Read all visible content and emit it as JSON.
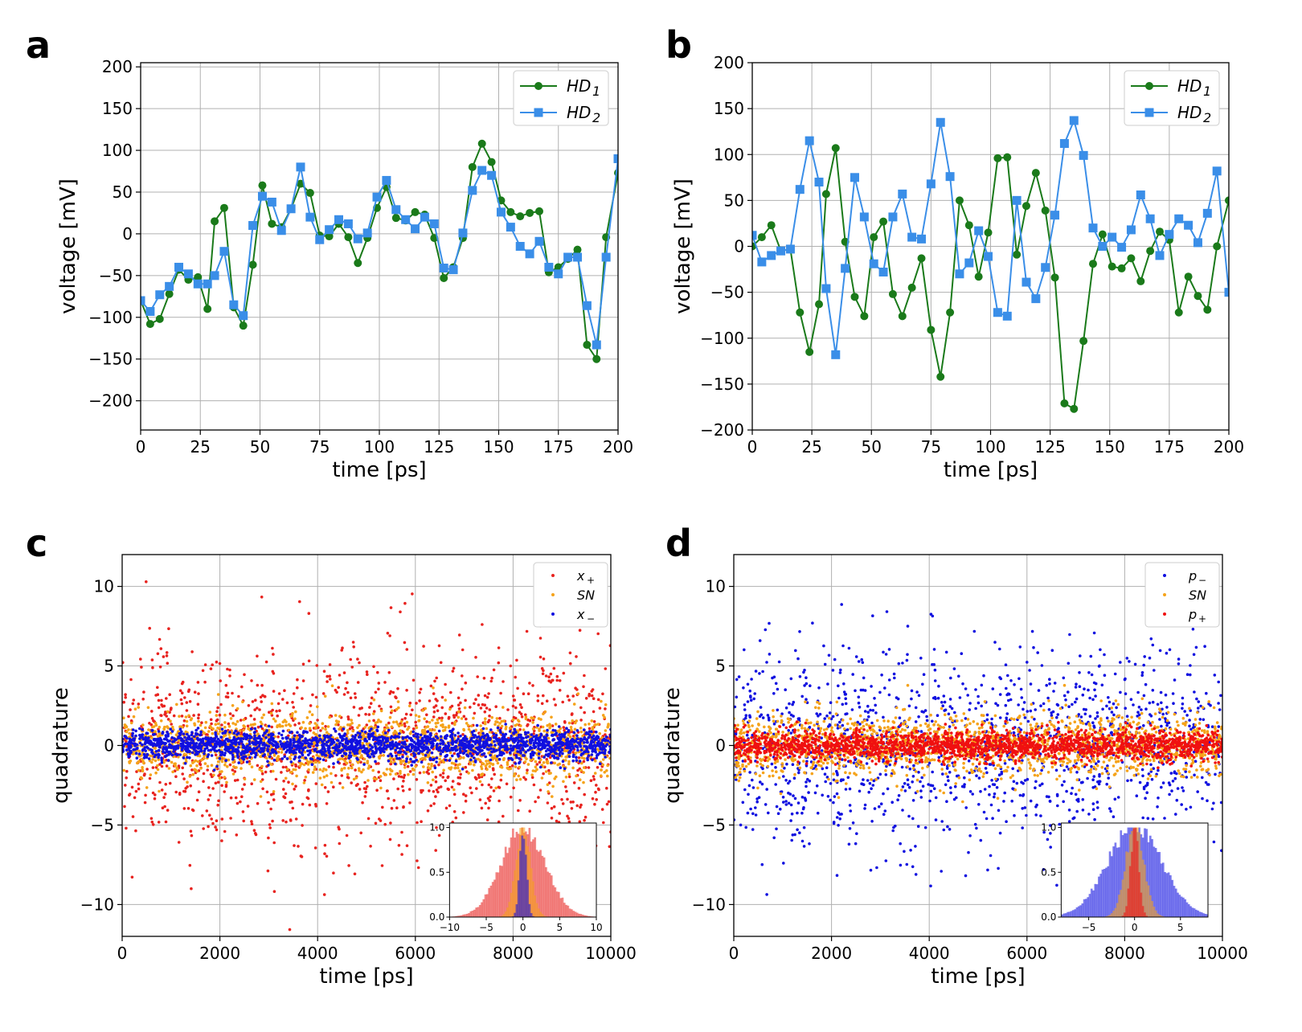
{
  "chart_data": [
    {
      "panel": "a",
      "type": "line",
      "xlabel": "time [ps]",
      "ylabel": "voltage [mV]",
      "xlim": [
        0,
        200
      ],
      "ylim": [
        -235,
        205
      ],
      "xticks": [
        0,
        25,
        50,
        75,
        100,
        125,
        150,
        175,
        200
      ],
      "yticks": [
        -200,
        -150,
        -100,
        -50,
        0,
        50,
        100,
        150,
        200
      ],
      "grid": true,
      "legend_position": "top-right",
      "series": [
        {
          "name": "HD",
          "sub": "1",
          "color": "#1a7a1a",
          "marker": "circle",
          "x": [
            0,
            4,
            8,
            12,
            16,
            20,
            24,
            28,
            31,
            35,
            39,
            43,
            47,
            51,
            55,
            59,
            63,
            67,
            71,
            75,
            79,
            83,
            87,
            91,
            95,
            99,
            103,
            107,
            111,
            115,
            119,
            123,
            127,
            131,
            135,
            139,
            143,
            147,
            151,
            155,
            159,
            163,
            167,
            171,
            175,
            179,
            183,
            187,
            191,
            195,
            200
          ],
          "values": [
            -80,
            -108,
            -102,
            -72,
            -43,
            -55,
            -52,
            -90,
            15,
            31,
            -88,
            -110,
            -37,
            58,
            12,
            8,
            30,
            60,
            49,
            -2,
            -3,
            12,
            -4,
            -35,
            -5,
            31,
            56,
            19,
            16,
            26,
            23,
            -5,
            -53,
            -40,
            -5,
            80,
            108,
            86,
            40,
            26,
            21,
            25,
            27,
            -46,
            -40,
            -30,
            -19,
            -133,
            -150,
            -4,
            73
          ]
        },
        {
          "name": "HD",
          "sub": "2",
          "color": "#3a8ee8",
          "marker": "square",
          "x": [
            0,
            4,
            8,
            12,
            16,
            20,
            24,
            28,
            31,
            35,
            39,
            43,
            47,
            51,
            55,
            59,
            63,
            67,
            71,
            75,
            79,
            83,
            87,
            91,
            95,
            99,
            103,
            107,
            111,
            115,
            119,
            123,
            127,
            131,
            135,
            139,
            143,
            147,
            151,
            155,
            159,
            163,
            167,
            171,
            175,
            179,
            183,
            187,
            191,
            195,
            200
          ],
          "values": [
            -80,
            -93,
            -73,
            -63,
            -40,
            -48,
            -60,
            -60,
            -50,
            -21,
            -85,
            -98,
            10,
            45,
            38,
            4,
            30,
            80,
            20,
            -7,
            5,
            17,
            12,
            -6,
            1,
            44,
            64,
            29,
            17,
            6,
            20,
            12,
            -41,
            -43,
            1,
            52,
            76,
            70,
            26,
            8,
            -15,
            -24,
            -9,
            -40,
            -48,
            -28,
            -28,
            -86,
            -133,
            -28,
            90
          ]
        }
      ]
    },
    {
      "panel": "b",
      "type": "line",
      "xlabel": "time [ps]",
      "ylabel": "voltage [mV]",
      "xlim": [
        0,
        200
      ],
      "ylim": [
        -200,
        200
      ],
      "xticks": [
        0,
        25,
        50,
        75,
        100,
        125,
        150,
        175,
        200
      ],
      "yticks": [
        -200,
        -150,
        -100,
        -50,
        0,
        50,
        100,
        150,
        200
      ],
      "grid": true,
      "legend_position": "top-right",
      "series": [
        {
          "name": "HD",
          "sub": "1",
          "color": "#1a7a1a",
          "marker": "circle",
          "x": [
            0,
            4,
            8,
            12,
            16,
            20,
            24,
            28,
            31,
            35,
            39,
            43,
            47,
            51,
            55,
            59,
            63,
            67,
            71,
            75,
            79,
            83,
            87,
            91,
            95,
            99,
            103,
            107,
            111,
            115,
            119,
            123,
            127,
            131,
            135,
            139,
            143,
            147,
            151,
            155,
            159,
            163,
            167,
            171,
            175,
            179,
            183,
            187,
            191,
            195,
            200
          ],
          "values": [
            0,
            10,
            23,
            -5,
            -3,
            -72,
            -115,
            -63,
            57,
            107,
            5,
            -55,
            -76,
            10,
            27,
            -52,
            -76,
            -45,
            -13,
            -91,
            -142,
            -72,
            50,
            23,
            -33,
            15,
            96,
            97,
            -9,
            44,
            80,
            39,
            -34,
            -171,
            -177,
            -103,
            -19,
            13,
            -22,
            -24,
            -13,
            -38,
            -5,
            16,
            7,
            -72,
            -33,
            -54,
            -69,
            0,
            50
          ]
        },
        {
          "name": "HD",
          "sub": "2",
          "color": "#3a8ee8",
          "marker": "square",
          "x": [
            0,
            4,
            8,
            12,
            16,
            20,
            24,
            28,
            31,
            35,
            39,
            43,
            47,
            51,
            55,
            59,
            63,
            67,
            71,
            75,
            79,
            83,
            87,
            91,
            95,
            99,
            103,
            107,
            111,
            115,
            119,
            123,
            127,
            131,
            135,
            139,
            143,
            147,
            151,
            155,
            159,
            163,
            167,
            171,
            175,
            179,
            183,
            187,
            191,
            195,
            200
          ],
          "values": [
            12,
            -17,
            -10,
            -5,
            -3,
            62,
            115,
            70,
            -46,
            -118,
            -24,
            75,
            32,
            -19,
            -28,
            32,
            57,
            10,
            8,
            68,
            135,
            76,
            -30,
            -18,
            17,
            -11,
            -72,
            -76,
            50,
            -39,
            -57,
            -23,
            34,
            112,
            137,
            99,
            20,
            0,
            10,
            -1,
            18,
            56,
            30,
            -10,
            13,
            30,
            23,
            4,
            36,
            82,
            -50
          ]
        }
      ],
      "lines_extend_beyond": true
    },
    {
      "panel": "c",
      "type": "scatter",
      "xlabel": "time [ps]",
      "ylabel": "quadrature",
      "xlim": [
        0,
        10000
      ],
      "ylim": [
        -12,
        12
      ],
      "xticks": [
        0,
        2000,
        4000,
        6000,
        8000,
        10000
      ],
      "yticks": [
        -10,
        -5,
        0,
        5,
        10
      ],
      "grid": true,
      "legend_position": "top-right",
      "series": [
        {
          "name": "x",
          "sub": "+",
          "color": "#e8231f",
          "std": 3.0,
          "count": 1400,
          "draw_order": 1
        },
        {
          "name": "SN",
          "sub": "",
          "color": "#f5a31a",
          "std": 1.0,
          "count": 1700,
          "draw_order": 2
        },
        {
          "name": "x",
          "sub": "−",
          "color": "#1010e0",
          "std": 0.45,
          "count": 2000,
          "draw_order": 3
        }
      ],
      "inset": {
        "type": "histogram",
        "position": "bottom-right",
        "xlim": [
          -10,
          10
        ],
        "ylim": [
          0,
          1.05
        ],
        "xticks": [
          -10,
          -5,
          0,
          5,
          10
        ],
        "yticks": [
          0.0,
          0.5,
          1.0
        ],
        "series_std": [
          3.0,
          1.0,
          0.45
        ],
        "colors": [
          "#e8231f",
          "#f5a31a",
          "#1010e0"
        ]
      }
    },
    {
      "panel": "d",
      "type": "scatter",
      "xlabel": "time [ps]",
      "ylabel": "quadrature",
      "xlim": [
        0,
        10000
      ],
      "ylim": [
        -12,
        12
      ],
      "xticks": [
        0,
        2000,
        4000,
        6000,
        8000,
        10000
      ],
      "yticks": [
        -10,
        -5,
        0,
        5,
        10
      ],
      "grid": true,
      "legend_position": "top-right",
      "series": [
        {
          "name": "p",
          "sub": "−",
          "color": "#1010e0",
          "std": 3.0,
          "count": 1400,
          "draw_order": 1
        },
        {
          "name": "SN",
          "sub": "",
          "color": "#f5a31a",
          "std": 1.0,
          "count": 1700,
          "draw_order": 2
        },
        {
          "name": "p",
          "sub": "+",
          "color": "#f01010",
          "std": 0.45,
          "count": 2000,
          "draw_order": 3
        }
      ],
      "inset": {
        "type": "histogram",
        "position": "bottom-right",
        "xlim": [
          -8,
          8
        ],
        "ylim": [
          0,
          1.05
        ],
        "xticks": [
          -5,
          0,
          5
        ],
        "yticks": [
          0.0,
          0.5,
          1.0
        ],
        "series_std": [
          3.0,
          1.0,
          0.45
        ],
        "colors": [
          "#1010e0",
          "#f5a31a",
          "#f01010"
        ]
      }
    }
  ],
  "panel_labels": [
    "a",
    "b",
    "c",
    "d"
  ]
}
